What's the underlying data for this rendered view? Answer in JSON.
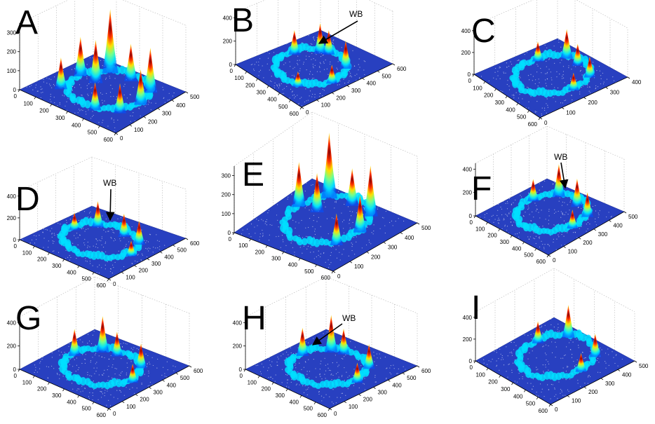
{
  "figure": {
    "background": "#ffffff",
    "colormap": [
      "#00008f",
      "#0050ff",
      "#00dfff",
      "#70ff8f",
      "#ffdf00",
      "#ff5000",
      "#800000"
    ],
    "surface_base_color": "#2840c0"
  },
  "chart_data": [
    {
      "panel": "A",
      "type": "surface",
      "x_ticks": [
        "0",
        "100",
        "200",
        "300",
        "400",
        "500",
        "600"
      ],
      "y_ticks": [
        "0",
        "100",
        "200",
        "300",
        "400",
        "500"
      ],
      "z_ticks": [
        "0",
        "100",
        "200",
        "300"
      ],
      "xlim": [
        0,
        600
      ],
      "ylim": [
        0,
        500
      ],
      "zlim": [
        0,
        350
      ],
      "ring": {
        "center": [
          300,
          280
        ],
        "radius": 190
      },
      "peaks": [
        {
          "x": 170,
          "y": 430,
          "z": 330
        },
        {
          "x": 95,
          "y": 310,
          "z": 200
        },
        {
          "x": 190,
          "y": 310,
          "z": 220
        },
        {
          "x": 290,
          "y": 440,
          "z": 190
        },
        {
          "x": 430,
          "y": 420,
          "z": 230
        },
        {
          "x": 480,
          "y": 300,
          "z": 180
        },
        {
          "x": 470,
          "y": 170,
          "z": 150
        },
        {
          "x": 370,
          "y": 110,
          "z": 140
        },
        {
          "x": 120,
          "y": 150,
          "z": 160
        }
      ],
      "annotation": ""
    },
    {
      "panel": "B",
      "type": "surface",
      "x_ticks": [
        "0",
        "100",
        "200",
        "300",
        "400",
        "500",
        "600"
      ],
      "y_ticks": [
        "0",
        "100",
        "200",
        "300",
        "400",
        "500",
        "600"
      ],
      "z_ticks": [
        "0",
        "200",
        "400"
      ],
      "xlim": [
        0,
        600
      ],
      "ylim": [
        0,
        600
      ],
      "zlim": [
        0,
        450
      ],
      "ring": {
        "center": [
          300,
          300
        ],
        "radius": 200
      },
      "peaks": [
        {
          "x": 190,
          "y": 450,
          "z": 250
        },
        {
          "x": 110,
          "y": 330,
          "z": 200
        },
        {
          "x": 230,
          "y": 480,
          "z": 200
        },
        {
          "x": 410,
          "y": 460,
          "z": 230
        },
        {
          "x": 490,
          "y": 300,
          "z": 150
        },
        {
          "x": 400,
          "y": 130,
          "z": 120
        }
      ],
      "annotation": "WB"
    },
    {
      "panel": "C",
      "type": "surface",
      "x_ticks": [
        "0",
        "100",
        "200",
        "300",
        "400",
        "500",
        "600"
      ],
      "y_ticks": [
        "0",
        "100",
        "200",
        "300",
        "400"
      ],
      "z_ticks": [
        "0",
        "200",
        "400"
      ],
      "xlim": [
        0,
        600
      ],
      "ylim": [
        0,
        500
      ],
      "zlim": [
        0,
        450
      ],
      "ring": {
        "center": [
          300,
          270
        ],
        "radius": 190
      },
      "peaks": [
        {
          "x": 190,
          "y": 430,
          "z": 260
        },
        {
          "x": 110,
          "y": 310,
          "z": 170
        },
        {
          "x": 290,
          "y": 430,
          "z": 190
        },
        {
          "x": 430,
          "y": 410,
          "z": 180
        },
        {
          "x": 480,
          "y": 280,
          "z": 150
        }
      ],
      "annotation": ""
    },
    {
      "panel": "D",
      "type": "surface",
      "x_ticks": [
        "0",
        "100",
        "200",
        "300",
        "400",
        "500",
        "600"
      ],
      "y_ticks": [
        "0",
        "100",
        "200",
        "300",
        "400",
        "500",
        "600"
      ],
      "z_ticks": [
        "0",
        "200",
        "400"
      ],
      "xlim": [
        0,
        600
      ],
      "ylim": [
        0,
        600
      ],
      "zlim": [
        0,
        450
      ],
      "ring": {
        "center": [
          300,
          300
        ],
        "radius": 200
      },
      "peaks": [
        {
          "x": 170,
          "y": 440,
          "z": 230
        },
        {
          "x": 110,
          "y": 320,
          "z": 150
        },
        {
          "x": 330,
          "y": 460,
          "z": 200
        },
        {
          "x": 440,
          "y": 450,
          "z": 210
        },
        {
          "x": 500,
          "y": 310,
          "z": 130
        }
      ],
      "annotation": "WB"
    },
    {
      "panel": "E",
      "type": "surface",
      "x_ticks": [
        "0",
        "100",
        "200",
        "300",
        "400",
        "500",
        "600"
      ],
      "y_ticks": [
        "0",
        "100",
        "200",
        "300",
        "400",
        "500"
      ],
      "z_ticks": [
        "0",
        "100",
        "200",
        "300"
      ],
      "xlim": [
        0,
        600
      ],
      "ylim": [
        0,
        500
      ],
      "zlim": [
        0,
        350
      ],
      "ring": {
        "center": [
          300,
          280
        ],
        "radius": 190
      },
      "peaks": [
        {
          "x": 170,
          "y": 430,
          "z": 340
        },
        {
          "x": 100,
          "y": 310,
          "z": 230
        },
        {
          "x": 200,
          "y": 320,
          "z": 200
        },
        {
          "x": 300,
          "y": 440,
          "z": 190
        },
        {
          "x": 430,
          "y": 420,
          "z": 260
        },
        {
          "x": 480,
          "y": 300,
          "z": 190
        },
        {
          "x": 460,
          "y": 170,
          "z": 160
        }
      ],
      "annotation": ""
    },
    {
      "panel": "F",
      "type": "surface",
      "x_ticks": [
        "0",
        "100",
        "200",
        "300",
        "400",
        "500",
        "600"
      ],
      "y_ticks": [
        "0",
        "100",
        "200",
        "300",
        "400",
        "500"
      ],
      "z_ticks": [
        "0",
        "200",
        "400"
      ],
      "xlim": [
        0,
        600
      ],
      "ylim": [
        0,
        500
      ],
      "zlim": [
        0,
        450
      ],
      "ring": {
        "center": [
          300,
          280
        ],
        "radius": 190
      },
      "peaks": [
        {
          "x": 180,
          "y": 430,
          "z": 270
        },
        {
          "x": 110,
          "y": 310,
          "z": 180
        },
        {
          "x": 330,
          "y": 430,
          "z": 230
        },
        {
          "x": 450,
          "y": 400,
          "z": 200
        },
        {
          "x": 480,
          "y": 270,
          "z": 150
        }
      ],
      "annotation": "WB"
    },
    {
      "panel": "G",
      "type": "surface",
      "x_ticks": [
        "0",
        "100",
        "200",
        "300",
        "400",
        "500",
        "600"
      ],
      "y_ticks": [
        "0",
        "100",
        "200",
        "300",
        "400",
        "500",
        "600"
      ],
      "z_ticks": [
        "0",
        "200",
        "400"
      ],
      "xlim": [
        0,
        600
      ],
      "ylim": [
        0,
        600
      ],
      "zlim": [
        0,
        450
      ],
      "ring": {
        "center": [
          300,
          300
        ],
        "radius": 200
      },
      "peaks": [
        {
          "x": 180,
          "y": 450,
          "z": 300
        },
        {
          "x": 100,
          "y": 320,
          "z": 220
        },
        {
          "x": 260,
          "y": 470,
          "z": 200
        },
        {
          "x": 430,
          "y": 460,
          "z": 200
        },
        {
          "x": 500,
          "y": 310,
          "z": 150
        }
      ],
      "annotation": ""
    },
    {
      "panel": "H",
      "type": "surface",
      "x_ticks": [
        "0",
        "100",
        "200",
        "300",
        "400",
        "500",
        "600"
      ],
      "y_ticks": [
        "0",
        "100",
        "200",
        "300",
        "400",
        "500",
        "600"
      ],
      "z_ticks": [
        "0",
        "200",
        "400"
      ],
      "xlim": [
        0,
        600
      ],
      "ylim": [
        0,
        600
      ],
      "zlim": [
        0,
        450
      ],
      "ring": {
        "center": [
          300,
          300
        ],
        "radius": 200
      },
      "peaks": [
        {
          "x": 180,
          "y": 450,
          "z": 310
        },
        {
          "x": 100,
          "y": 320,
          "z": 230
        },
        {
          "x": 240,
          "y": 480,
          "z": 210
        },
        {
          "x": 440,
          "y": 460,
          "z": 200
        },
        {
          "x": 500,
          "y": 310,
          "z": 160
        }
      ],
      "annotation": "WB"
    },
    {
      "panel": "I",
      "type": "surface",
      "x_ticks": [
        "0",
        "100",
        "200",
        "300",
        "400",
        "500",
        "600"
      ],
      "y_ticks": [
        "0",
        "100",
        "200",
        "300",
        "400",
        "500"
      ],
      "z_ticks": [
        "0",
        "200",
        "400"
      ],
      "xlim": [
        0,
        600
      ],
      "ylim": [
        0,
        500
      ],
      "zlim": [
        0,
        450
      ],
      "ring": {
        "center": [
          300,
          280
        ],
        "radius": 190
      },
      "peaks": [
        {
          "x": 190,
          "y": 440,
          "z": 290
        },
        {
          "x": 110,
          "y": 310,
          "z": 190
        },
        {
          "x": 430,
          "y": 420,
          "z": 200
        },
        {
          "x": 480,
          "y": 290,
          "z": 160
        }
      ],
      "annotation": ""
    }
  ]
}
